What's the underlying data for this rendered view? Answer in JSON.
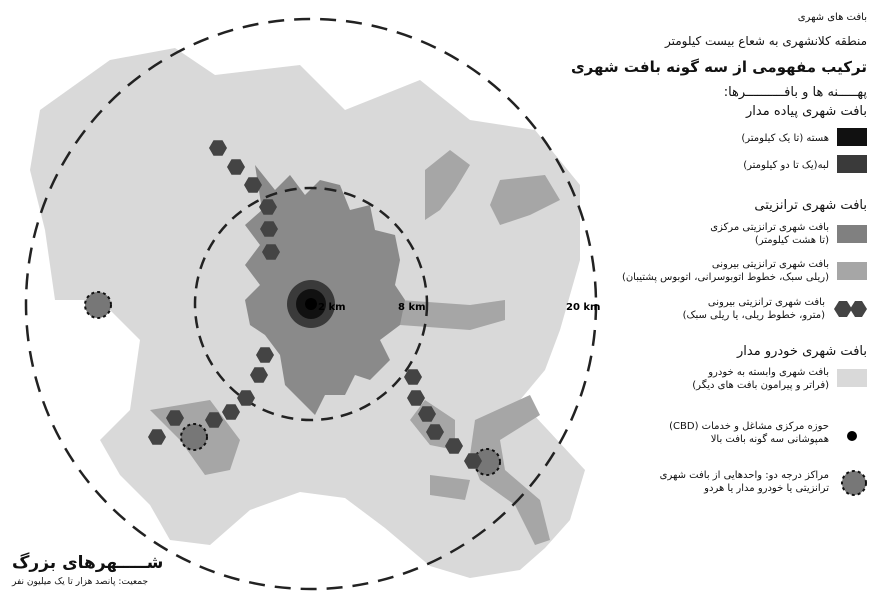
{
  "legend": {
    "header_small": "بافت های شهری",
    "subtitle": "منطقه کلانشهری به شعاع بیست کیلومتر",
    "title": "ترکیب مفهومی از سه گونه بافت شهری",
    "zones_heading": "پهـــــنه ها و بافــــــــــرها:",
    "walking": {
      "heading": "بافت شهری پیاده مدار",
      "items": [
        {
          "label": "هسته (تا یک کیلومتر)",
          "color": "#111111"
        },
        {
          "label": "لبه(یک تا دو کیلومتر)",
          "color": "#3a3a3a"
        }
      ]
    },
    "transit": {
      "heading": "بافت شهری ترانزیتی",
      "items": [
        {
          "line1": "بافت شهری ترانزیتی مرکزی",
          "line2": "(تا هشت کیلومتر)",
          "color": "#808080"
        },
        {
          "line1": "بافت شهری ترانزیتی بیرونی",
          "line2": "(ریلی سبک، خطوط اتوبوسرانی، اتوبوس پشتیبان)",
          "color": "#a6a6a6"
        },
        {
          "line1": "بافت شهری ترانزیتی بیرونی",
          "line2": "(مترو، خطوط ریلی، یا ریلی سبک)",
          "color": "#444444"
        }
      ]
    },
    "auto": {
      "heading": "بافت شهری خودرو مدار",
      "items": [
        {
          "line1": "بافت شهری وابسته به خودرو",
          "line2": "(فراتر و پیرامون بافت های دیگر)",
          "color": "#d9d9d9"
        }
      ]
    },
    "cbd": {
      "line1": "حوزه مرکزی مشاغل و خدمات (CBD)",
      "line2": "همپوشانی سه گونه بافت بالا"
    },
    "secondary": {
      "line1": "مراکز درجه دو: واحدهایی از بافت شهری",
      "line2": "ترانزیتی یا خودرو مدار یا هردو"
    }
  },
  "map": {
    "ring_labels": {
      "inner": "2 km",
      "middle": "8 km",
      "outer": "20 km"
    }
  },
  "footer": {
    "title": "شـــــهرهای بزرگ",
    "population": "جمعیت: پانصد هزار تا یک میلیون نفر"
  }
}
